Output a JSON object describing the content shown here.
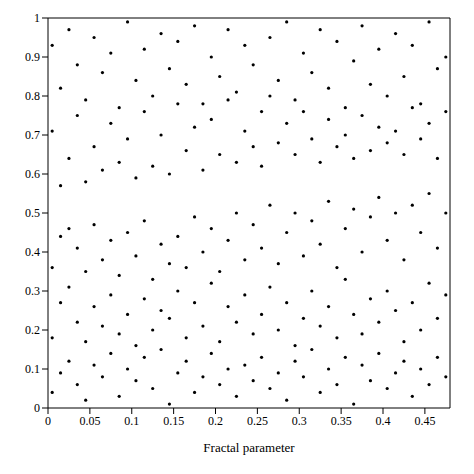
{
  "chart_data": {
    "type": "scatter",
    "xlabel": "Fractal parameter",
    "color": "#000000",
    "marker": "dot",
    "xlim": [
      0,
      0.48
    ],
    "xticks": [
      0,
      0.05,
      0.1,
      0.15,
      0.2,
      0.25,
      0.3,
      0.35,
      0.4,
      0.45
    ],
    "ylim": [
      0,
      1
    ],
    "yticks": [
      0,
      0.1,
      0.2,
      0.3,
      0.4,
      0.5,
      0.6,
      0.7,
      0.8,
      0.9,
      1
    ],
    "grid": false,
    "x": [
      0.005,
      0.005,
      0.005,
      0.005,
      0.005,
      0.015,
      0.015,
      0.015,
      0.015,
      0.015,
      0.025,
      0.025,
      0.025,
      0.025,
      0.025,
      0.035,
      0.035,
      0.035,
      0.035,
      0.035,
      0.045,
      0.045,
      0.045,
      0.045,
      0.045,
      0.055,
      0.055,
      0.055,
      0.055,
      0.055,
      0.065,
      0.065,
      0.065,
      0.065,
      0.065,
      0.075,
      0.075,
      0.075,
      0.075,
      0.075,
      0.085,
      0.085,
      0.085,
      0.085,
      0.085,
      0.095,
      0.095,
      0.095,
      0.095,
      0.095,
      0.105,
      0.105,
      0.105,
      0.105,
      0.105,
      0.115,
      0.115,
      0.115,
      0.115,
      0.115,
      0.125,
      0.125,
      0.125,
      0.125,
      0.125,
      0.135,
      0.135,
      0.135,
      0.135,
      0.135,
      0.145,
      0.145,
      0.145,
      0.145,
      0.145,
      0.155,
      0.155,
      0.155,
      0.155,
      0.155,
      0.165,
      0.165,
      0.165,
      0.165,
      0.165,
      0.175,
      0.175,
      0.175,
      0.175,
      0.175,
      0.185,
      0.185,
      0.185,
      0.185,
      0.185,
      0.195,
      0.195,
      0.195,
      0.195,
      0.195,
      0.205,
      0.205,
      0.205,
      0.205,
      0.205,
      0.215,
      0.215,
      0.215,
      0.215,
      0.215,
      0.225,
      0.225,
      0.225,
      0.225,
      0.225,
      0.235,
      0.235,
      0.235,
      0.235,
      0.235,
      0.245,
      0.245,
      0.245,
      0.245,
      0.245,
      0.255,
      0.255,
      0.255,
      0.255,
      0.255,
      0.265,
      0.265,
      0.265,
      0.265,
      0.265,
      0.275,
      0.275,
      0.275,
      0.275,
      0.275,
      0.285,
      0.285,
      0.285,
      0.285,
      0.285,
      0.295,
      0.295,
      0.295,
      0.295,
      0.295,
      0.305,
      0.305,
      0.305,
      0.305,
      0.305,
      0.315,
      0.315,
      0.315,
      0.315,
      0.315,
      0.325,
      0.325,
      0.325,
      0.325,
      0.325,
      0.335,
      0.335,
      0.335,
      0.335,
      0.335,
      0.345,
      0.345,
      0.345,
      0.345,
      0.345,
      0.355,
      0.355,
      0.355,
      0.355,
      0.355,
      0.365,
      0.365,
      0.365,
      0.365,
      0.365,
      0.375,
      0.375,
      0.375,
      0.375,
      0.375,
      0.385,
      0.385,
      0.385,
      0.385,
      0.385,
      0.395,
      0.395,
      0.395,
      0.395,
      0.395,
      0.405,
      0.405,
      0.405,
      0.405,
      0.405,
      0.415,
      0.415,
      0.415,
      0.415,
      0.415,
      0.425,
      0.425,
      0.425,
      0.425,
      0.425,
      0.435,
      0.435,
      0.435,
      0.435,
      0.435,
      0.445,
      0.445,
      0.445,
      0.445,
      0.445,
      0.455,
      0.455,
      0.455,
      0.455,
      0.455,
      0.465,
      0.465,
      0.465,
      0.465,
      0.465,
      0.475,
      0.475,
      0.475,
      0.475,
      0.475
    ],
    "values": [
      0.93,
      0.71,
      0.36,
      0.18,
      0.04,
      0.82,
      0.57,
      0.44,
      0.27,
      0.09,
      0.97,
      0.64,
      0.46,
      0.31,
      0.12,
      0.88,
      0.75,
      0.41,
      0.22,
      0.06,
      0.79,
      0.58,
      0.35,
      0.17,
      0.02,
      0.95,
      0.67,
      0.47,
      0.26,
      0.11,
      0.86,
      0.61,
      0.38,
      0.21,
      0.08,
      0.91,
      0.73,
      0.43,
      0.29,
      0.14,
      0.77,
      0.63,
      0.34,
      0.19,
      0.03,
      0.99,
      0.69,
      0.45,
      0.24,
      0.1,
      0.84,
      0.59,
      0.39,
      0.16,
      0.07,
      0.92,
      0.76,
      0.48,
      0.28,
      0.13,
      0.8,
      0.62,
      0.33,
      0.2,
      0.05,
      0.96,
      0.7,
      0.42,
      0.25,
      0.15,
      0.87,
      0.6,
      0.37,
      0.23,
      0.01,
      0.94,
      0.78,
      0.44,
      0.3,
      0.09,
      0.83,
      0.66,
      0.36,
      0.18,
      0.12,
      0.98,
      0.72,
      0.49,
      0.27,
      0.04,
      0.78,
      0.61,
      0.4,
      0.21,
      0.08,
      0.9,
      0.74,
      0.46,
      0.32,
      0.14,
      0.85,
      0.65,
      0.35,
      0.17,
      0.06,
      0.97,
      0.79,
      0.43,
      0.26,
      0.1,
      0.81,
      0.63,
      0.5,
      0.22,
      0.03,
      0.93,
      0.71,
      0.38,
      0.29,
      0.11,
      0.88,
      0.67,
      0.47,
      0.19,
      0.07,
      0.76,
      0.62,
      0.41,
      0.24,
      0.13,
      0.95,
      0.8,
      0.52,
      0.31,
      0.05,
      0.84,
      0.68,
      0.37,
      0.2,
      0.09,
      0.99,
      0.73,
      0.45,
      0.27,
      0.02,
      0.79,
      0.65,
      0.5,
      0.16,
      0.12,
      0.91,
      0.76,
      0.39,
      0.23,
      0.08,
      0.86,
      0.69,
      0.48,
      0.3,
      0.15,
      0.97,
      0.63,
      0.42,
      0.21,
      0.04,
      0.82,
      0.74,
      0.53,
      0.26,
      0.1,
      0.94,
      0.67,
      0.36,
      0.18,
      0.06,
      0.77,
      0.7,
      0.46,
      0.33,
      0.13,
      0.89,
      0.64,
      0.51,
      0.24,
      0.01,
      0.98,
      0.75,
      0.4,
      0.19,
      0.11,
      0.83,
      0.66,
      0.49,
      0.28,
      0.07,
      0.92,
      0.72,
      0.54,
      0.22,
      0.14,
      0.8,
      0.68,
      0.43,
      0.3,
      0.05,
      0.96,
      0.71,
      0.5,
      0.25,
      0.09,
      0.85,
      0.65,
      0.38,
      0.17,
      0.12,
      0.93,
      0.77,
      0.52,
      0.27,
      0.03,
      0.78,
      0.69,
      0.45,
      0.2,
      0.1,
      0.99,
      0.73,
      0.55,
      0.32,
      0.06,
      0.87,
      0.64,
      0.41,
      0.23,
      0.13,
      0.9,
      0.76,
      0.5,
      0.29,
      0.08
    ]
  }
}
